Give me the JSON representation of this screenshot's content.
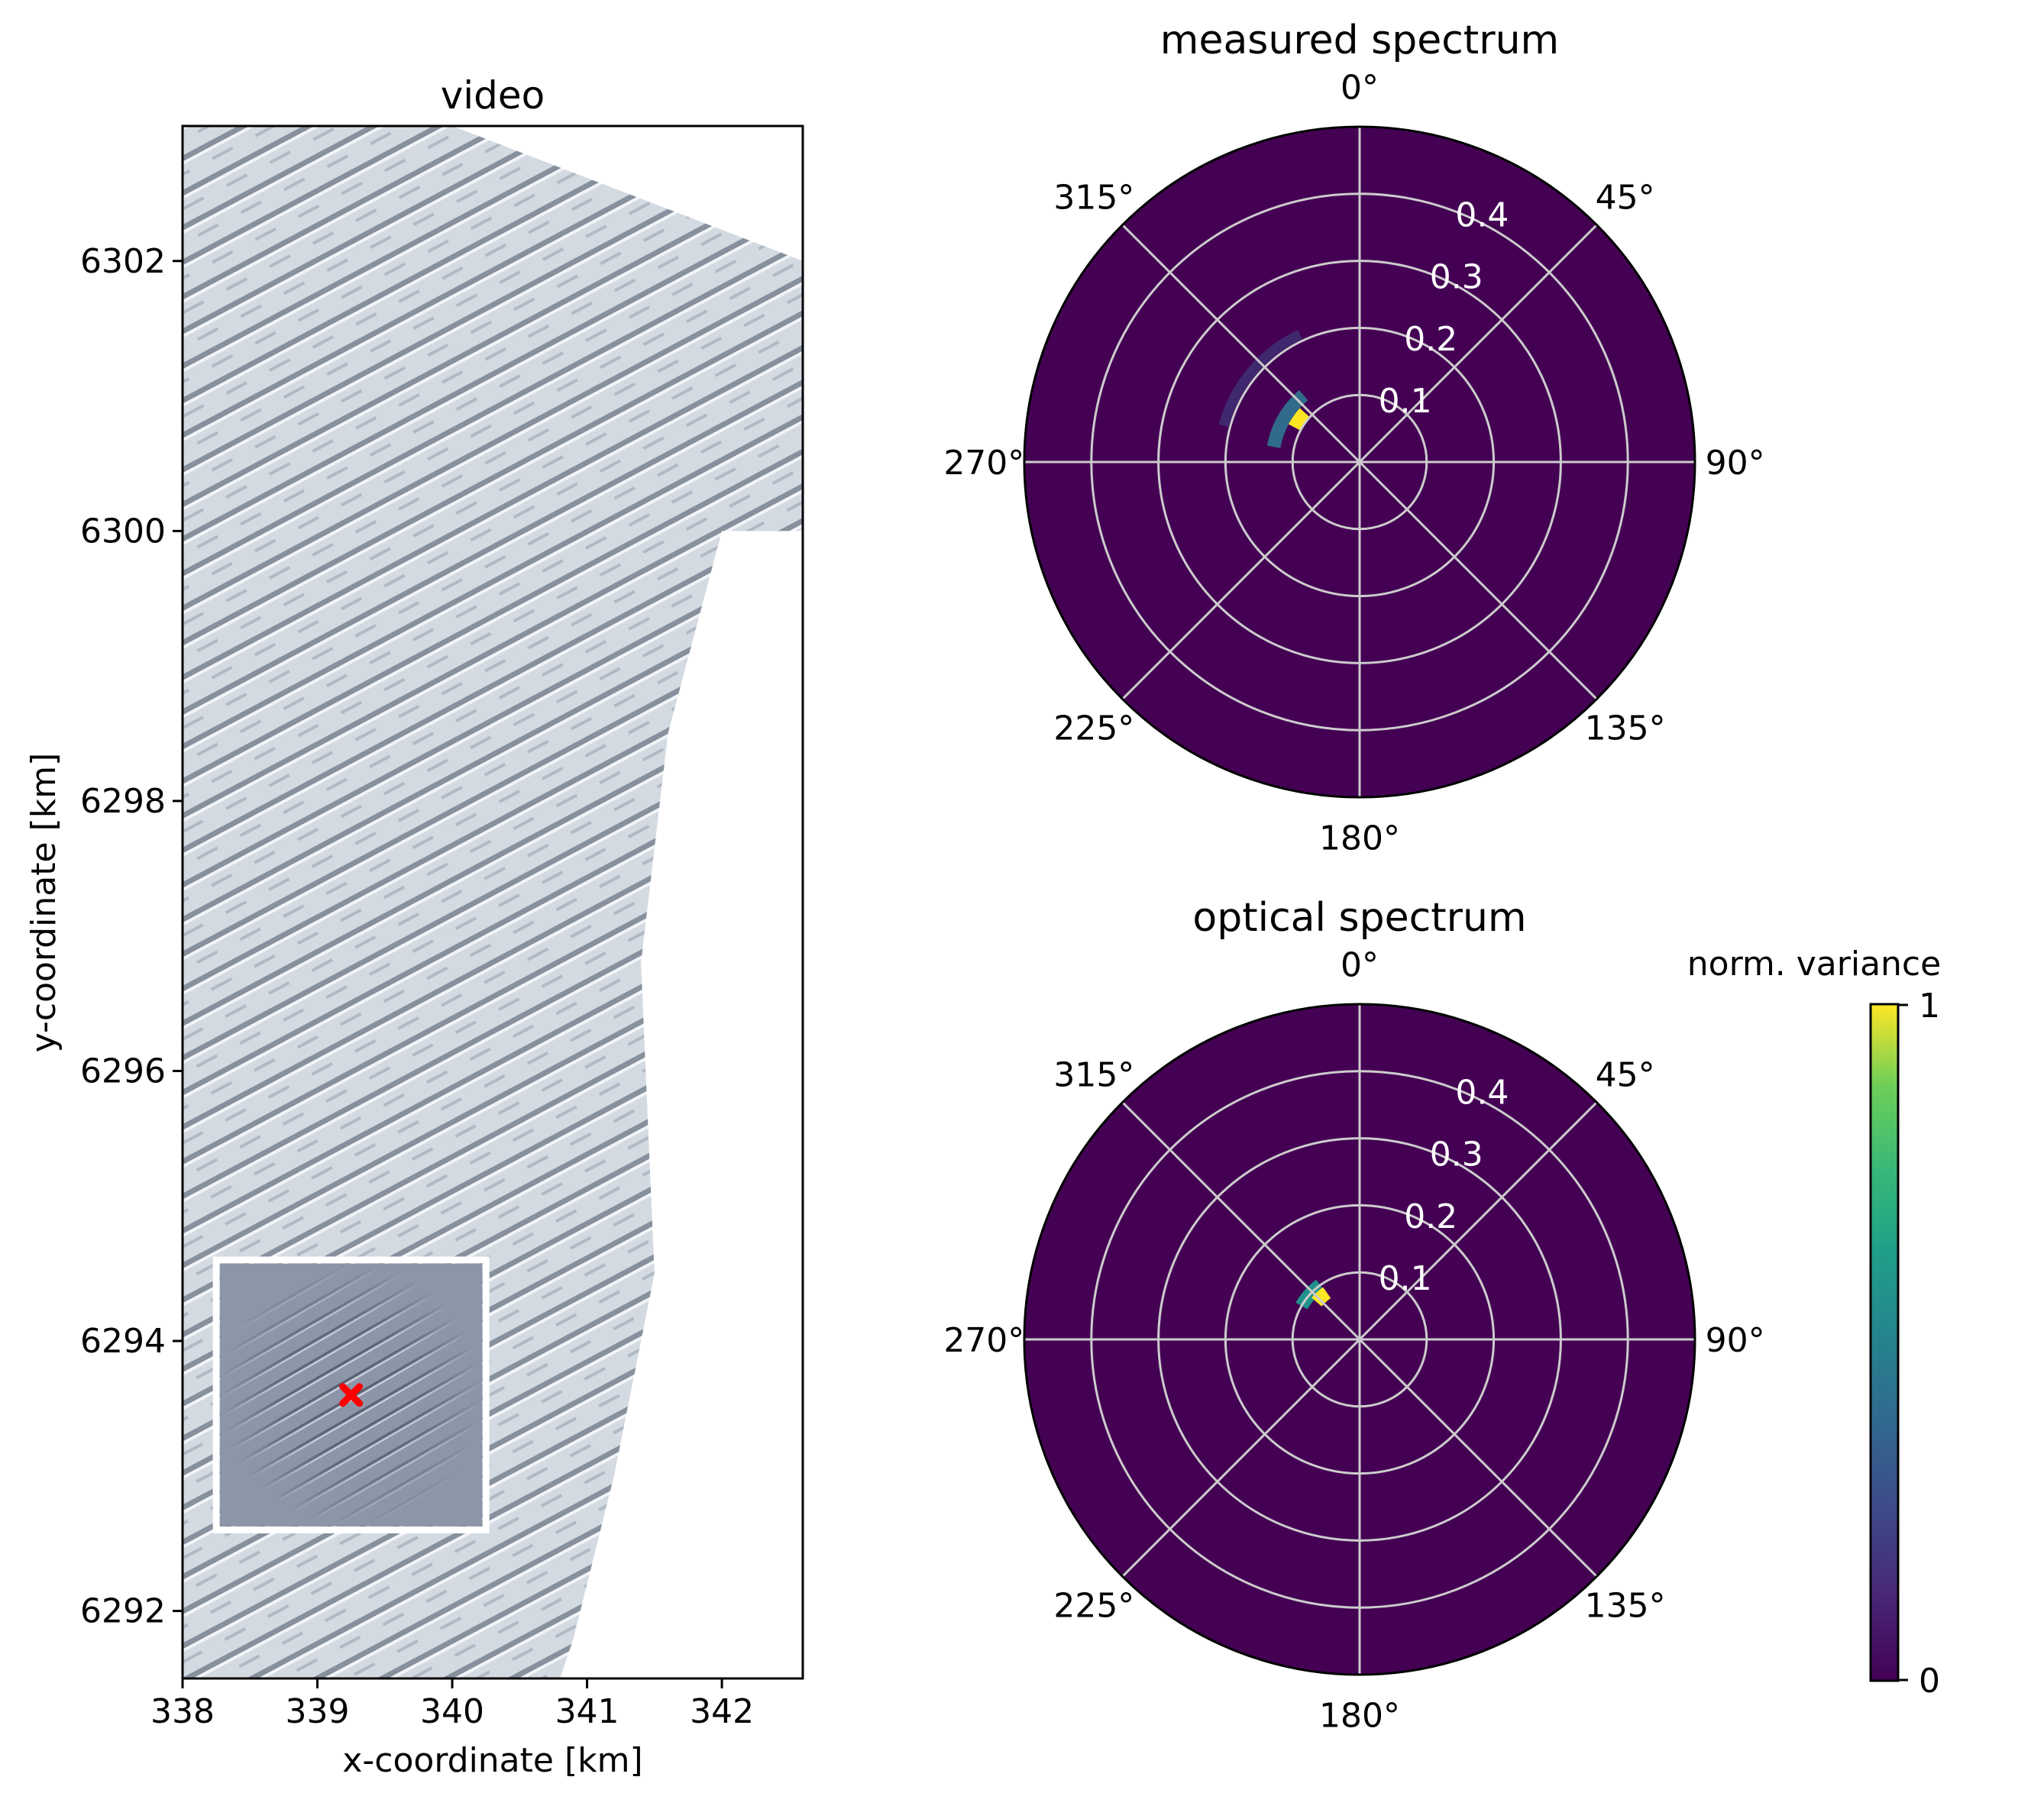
{
  "colors": {
    "viridis_dark": "#440154",
    "viridis_mid": "#21918c",
    "viridis_light": "#5ec962",
    "viridis_yellow": "#fde725",
    "grid": "#cccccc",
    "marker_red": "#ff0000",
    "terrain_light": "#d3dae1",
    "terrain_dark": "#6d7686",
    "inset_bg": "#8c96a8"
  },
  "chart_data": [
    {
      "type": "image",
      "title": "video",
      "xlabel": "x-coordinate [km]",
      "ylabel": "y-coordinate [km]",
      "xlim": [
        338,
        342.6
      ],
      "ylim": [
        6291.5,
        6303.0
      ],
      "xticks": [
        338,
        339,
        340,
        341,
        342
      ],
      "xtick_labels": [
        "338",
        "339",
        "340",
        "341",
        "342"
      ],
      "yticks": [
        6292,
        6294,
        6296,
        6298,
        6300,
        6302
      ],
      "ytick_labels": [
        "6292",
        "6294",
        "6296",
        "6298",
        "6300",
        "6302"
      ],
      "coverage_edge": [
        [
          340.0,
          6303.0
        ],
        [
          342.6,
          6302.0
        ],
        [
          342.6,
          6300.0
        ],
        [
          342.0,
          6300.0
        ],
        [
          341.6,
          6298.5
        ],
        [
          341.4,
          6296.8
        ],
        [
          341.5,
          6294.5
        ],
        [
          341.2,
          6293.0
        ],
        [
          340.9,
          6291.8
        ],
        [
          340.8,
          6291.5
        ]
      ],
      "inset": {
        "x_range": [
          338.25,
          340.25
        ],
        "y_range": [
          6292.6,
          6294.6
        ],
        "marker": [
          339.25,
          6293.6
        ]
      }
    },
    {
      "type": "polar-heatmap",
      "title": "measured spectrum",
      "theta_labels": [
        "0°",
        "45°",
        "90°",
        "135°",
        "180°",
        "225°",
        "270°",
        "315°"
      ],
      "r_ticks": [
        0.1,
        0.2,
        0.3,
        0.4
      ],
      "r_tick_labels": [
        "0.1",
        "0.2",
        "0.3",
        "0.4"
      ],
      "r_max": 0.5,
      "peaks": [
        {
          "theta_deg": 305,
          "r": 0.11,
          "dtheta": 14,
          "dr": 0.02,
          "value": 1.0
        },
        {
          "theta_deg": 300,
          "r": 0.13,
          "dtheta": 40,
          "dr": 0.02,
          "value": 0.35
        },
        {
          "theta_deg": 310,
          "r": 0.21,
          "dtheta": 50,
          "dr": 0.015,
          "value": 0.12
        }
      ]
    },
    {
      "type": "polar-heatmap",
      "title": "optical spectrum",
      "theta_labels": [
        "0°",
        "45°",
        "90°",
        "135°",
        "180°",
        "225°",
        "270°",
        "315°"
      ],
      "r_ticks": [
        0.1,
        0.2,
        0.3,
        0.4
      ],
      "r_tick_labels": [
        "0.1",
        "0.2",
        "0.3",
        "0.4"
      ],
      "r_max": 0.5,
      "peaks": [
        {
          "theta_deg": 318,
          "r": 0.085,
          "dtheta": 14,
          "dr": 0.02,
          "value": 1.0
        },
        {
          "theta_deg": 312,
          "r": 0.1,
          "dtheta": 24,
          "dr": 0.02,
          "value": 0.5
        }
      ]
    },
    {
      "type": "colorbar",
      "label": "norm. variance",
      "min": 0,
      "max": 1,
      "tick_labels": [
        "0",
        "1"
      ],
      "colormap": "viridis"
    }
  ]
}
